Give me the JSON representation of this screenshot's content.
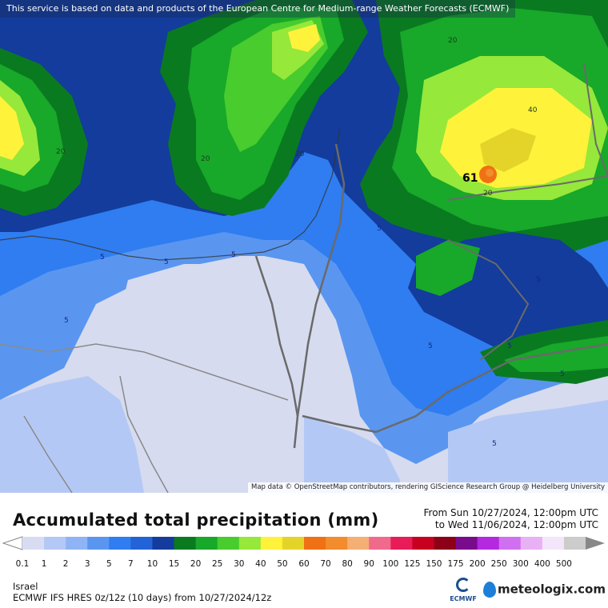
{
  "map": {
    "banner": "This service is based on data and products of the European Centre for Medium-range Weather Forecasts (ECMWF)",
    "attribution": "Map data © OpenStreetMap contributors, rendering GIScience Research Group @ Heidelberg University",
    "contour_labels": [
      "20",
      "20",
      "20",
      "20",
      "40",
      "20",
      "5",
      "5",
      "5",
      "5",
      "5",
      "5",
      "5",
      "5",
      "5",
      "5"
    ],
    "max_value": "61"
  },
  "footer": {
    "title": "Accumulated total precipitation (mm)",
    "range_from": "From Sun 10/27/2024, 12:00pm UTC",
    "range_to": "to Wed 11/06/2024, 12:00pm UTC",
    "region": "Israel",
    "model": "ECMWF IFS HRES 0z/12z (10 days) from 10/27/2024/12z",
    "ecmwf_logo_text": "ECMWF",
    "brand": "meteologix.com"
  },
  "legend": {
    "unit": "mm",
    "ticks": [
      "0.1",
      "1",
      "2",
      "3",
      "5",
      "7",
      "10",
      "15",
      "20",
      "25",
      "30",
      "40",
      "50",
      "60",
      "70",
      "80",
      "90",
      "100",
      "125",
      "150",
      "175",
      "200",
      "250",
      "300",
      "400",
      "500"
    ],
    "colors": [
      "#d8dcf2",
      "#b4c8f5",
      "#8fb4f5",
      "#5a96f0",
      "#2f7df0",
      "#2264d8",
      "#133c9c",
      "#0a7a20",
      "#18a82a",
      "#48cc2e",
      "#96e83a",
      "#fff23a",
      "#e4d42a",
      "#f07014",
      "#f28c2c",
      "#f5ae74",
      "#f06a8c",
      "#e81c58",
      "#c80020",
      "#8c0018",
      "#780c8c",
      "#b428e0",
      "#d070f0",
      "#e8b0f5",
      "#f4e6fa",
      "#cccccc"
    ]
  },
  "colors": {
    "accent_blue": "#1e7fd8",
    "ecmwf_blue": "#1c4f8f"
  }
}
